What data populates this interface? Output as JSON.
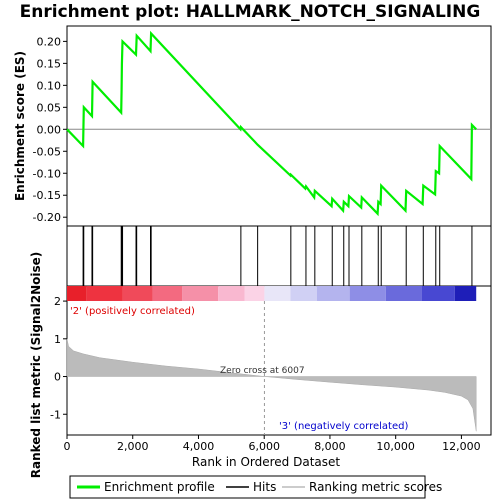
{
  "chart_data": {
    "type": "line",
    "title": "Enrichment plot: HALLMARK_NOTCH_SIGNALING",
    "top_panel": {
      "ylabel": "Enrichment score (ES)",
      "ylim": [
        -0.22,
        0.235
      ],
      "yticks": [
        -0.2,
        -0.15,
        -0.1,
        -0.05,
        0.0,
        0.05,
        0.1,
        0.15,
        0.2
      ],
      "ytick_labels": [
        "-0.20",
        "-0.15",
        "-0.10",
        "-0.05",
        "0.00",
        "0.05",
        "0.10",
        "0.15",
        "0.20"
      ],
      "series_color": "#00ee00",
      "es_points": [
        [
          0,
          0.0
        ],
        [
          490,
          -0.038
        ],
        [
          510,
          0.05
        ],
        [
          760,
          0.03
        ],
        [
          780,
          0.108
        ],
        [
          1650,
          0.038
        ],
        [
          1660,
          0.09
        ],
        [
          1670,
          0.148
        ],
        [
          1690,
          0.2
        ],
        [
          2100,
          0.17
        ],
        [
          2120,
          0.213
        ],
        [
          2540,
          0.178
        ],
        [
          2560,
          0.218
        ],
        [
          5280,
          0.0
        ],
        [
          5290,
          0.005
        ],
        [
          5800,
          -0.035
        ],
        [
          6800,
          -0.105
        ],
        [
          6810,
          -0.103
        ],
        [
          7250,
          -0.135
        ],
        [
          7270,
          -0.13
        ],
        [
          7520,
          -0.155
        ],
        [
          7540,
          -0.14
        ],
        [
          8050,
          -0.175
        ],
        [
          8070,
          -0.158
        ],
        [
          8400,
          -0.185
        ],
        [
          8420,
          -0.165
        ],
        [
          8560,
          -0.175
        ],
        [
          8580,
          -0.152
        ],
        [
          8950,
          -0.178
        ],
        [
          8970,
          -0.155
        ],
        [
          9450,
          -0.192
        ],
        [
          9470,
          -0.165
        ],
        [
          9540,
          -0.17
        ],
        [
          9560,
          -0.128
        ],
        [
          10300,
          -0.185
        ],
        [
          10320,
          -0.14
        ],
        [
          10820,
          -0.17
        ],
        [
          10840,
          -0.128
        ],
        [
          11200,
          -0.148
        ],
        [
          11220,
          -0.095
        ],
        [
          11320,
          -0.1
        ],
        [
          11340,
          -0.038
        ],
        [
          12300,
          -0.113
        ],
        [
          12320,
          0.01
        ],
        [
          12450,
          0.0
        ]
      ]
    },
    "hits": [
      490,
      510,
      760,
      780,
      1650,
      1660,
      1670,
      1690,
      2100,
      2120,
      2540,
      2560,
      5290,
      5800,
      6810,
      7270,
      7540,
      8070,
      8420,
      8580,
      8970,
      9470,
      9560,
      10320,
      10840,
      11220,
      11340,
      12320
    ],
    "color_bar": {
      "label_positive": "'2' (positively correlated)",
      "label_negative": "'3' (negatively correlated)"
    },
    "bottom_panel": {
      "ylabel": "Ranked list metric (Signal2Noise)",
      "ylim": [
        -1.55,
        2.4
      ],
      "yticks": [
        -1,
        0,
        1,
        2
      ],
      "ytick_labels": [
        "-1",
        "0",
        "1",
        "2"
      ],
      "zero_cross_label": "Zero cross at 6007",
      "zero_cross": 6007,
      "metric_points": [
        [
          0,
          1.0
        ],
        [
          50,
          0.8
        ],
        [
          200,
          0.68
        ],
        [
          500,
          0.6
        ],
        [
          1000,
          0.5
        ],
        [
          2000,
          0.38
        ],
        [
          3000,
          0.28
        ],
        [
          4000,
          0.2
        ],
        [
          5000,
          0.1
        ],
        [
          6007,
          0.0
        ],
        [
          7000,
          -0.08
        ],
        [
          8000,
          -0.15
        ],
        [
          9000,
          -0.22
        ],
        [
          10000,
          -0.28
        ],
        [
          11000,
          -0.36
        ],
        [
          11500,
          -0.42
        ],
        [
          12000,
          -0.52
        ],
        [
          12200,
          -0.62
        ],
        [
          12350,
          -0.85
        ],
        [
          12450,
          -1.45
        ]
      ]
    },
    "xlabel": "Rank in Ordered Dataset",
    "xlim": [
      0,
      12900
    ],
    "xticks": [
      0,
      2000,
      4000,
      6000,
      8000,
      10000,
      12000
    ],
    "xtick_labels": [
      "0",
      "2,000",
      "4,000",
      "6,000",
      "8,000",
      "10,000",
      "12,000"
    ],
    "legend": [
      {
        "label": "Enrichment profile",
        "color": "#00ee00"
      },
      {
        "label": "Hits",
        "color": "#000000"
      },
      {
        "label": "Ranking metric scores",
        "color": "#bbbbbb"
      }
    ]
  }
}
